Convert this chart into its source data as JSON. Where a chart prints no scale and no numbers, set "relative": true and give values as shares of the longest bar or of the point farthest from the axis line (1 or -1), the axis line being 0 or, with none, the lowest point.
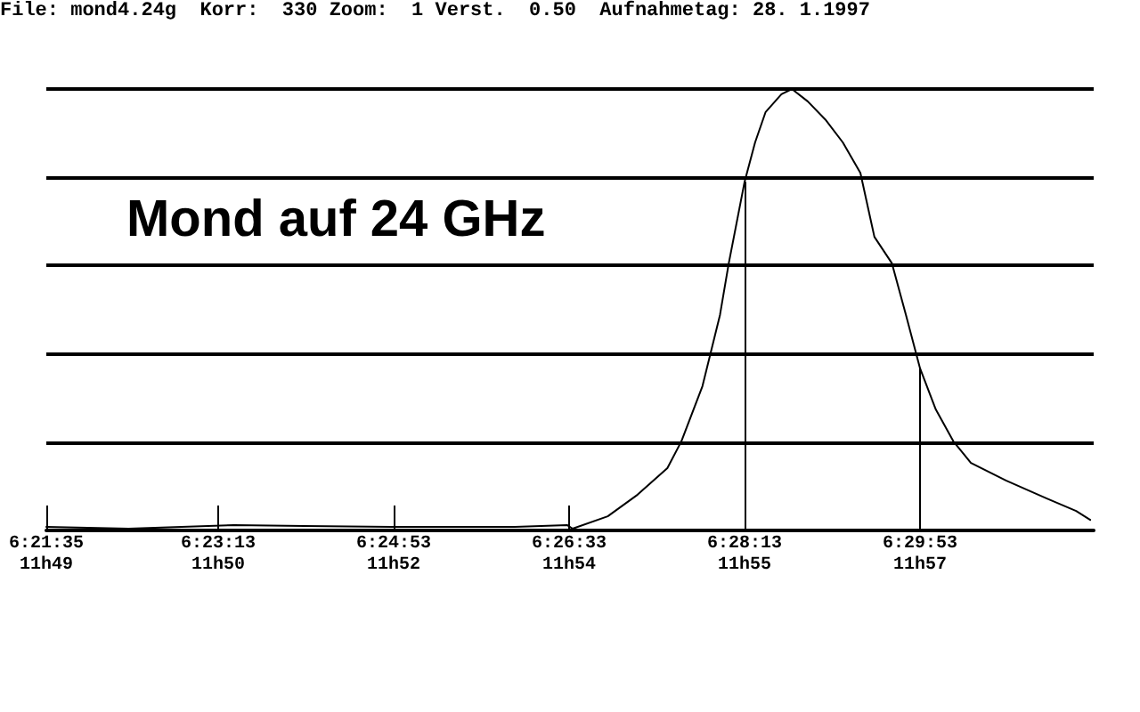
{
  "chart_data": {
    "type": "line",
    "title": "Mond auf 24 GHz",
    "annotations": [
      "File: mond4.24g  Korr:  330 Zoom:  1 Verst.  0.50  Aufnahmetag: 28. 1.1997",
      "11h49",
      "11h50",
      "11h52",
      "11h54",
      "11h55",
      "11h57"
    ],
    "relative": true,
    "x": [
      6.35972,
      6.37277,
      6.38111,
      6.38944,
      6.40055,
      6.41444,
      6.42555,
      6.43388,
      6.44222,
      6.44305,
      6.44861,
      6.45333,
      6.45805,
      6.46027,
      6.46361,
      6.46638,
      6.46777,
      6.47028,
      6.47194,
      6.47361,
      6.47611,
      6.47777,
      6.48027,
      6.48305,
      6.48583,
      6.48861,
      6.49083,
      6.49361,
      6.49583,
      6.49806,
      6.50055,
      6.50333,
      6.50611,
      6.51166,
      6.51805,
      6.52277,
      6.525
    ],
    "series": [
      {
        "color": "#000000",
        "values": [
          0.008,
          0.004,
          0.008,
          0.012,
          0.01,
          0.008,
          0.008,
          0.008,
          0.012,
          0.004,
          0.032,
          0.081,
          0.141,
          0.202,
          0.327,
          0.488,
          0.605,
          0.79,
          0.879,
          0.948,
          0.988,
          1.0,
          0.972,
          0.931,
          0.879,
          0.81,
          0.665,
          0.605,
          0.488,
          0.367,
          0.274,
          0.202,
          0.153,
          0.113,
          0.073,
          0.044,
          0.024
        ]
      }
    ],
    "xlim": [
      6.35972,
      6.52555
    ],
    "xticks": [
      {
        "value": 6.35972,
        "label": "6:21:35"
      },
      {
        "value": 6.38694,
        "label": "6:23:13"
      },
      {
        "value": 6.41472,
        "label": "6:24:53"
      },
      {
        "value": 6.4425,
        "label": "6:26:33"
      },
      {
        "value": 6.47028,
        "label": "6:28:13"
      },
      {
        "value": 6.49806,
        "label": "6:29:53"
      }
    ],
    "ref_lines": [
      {
        "axis": "x",
        "value": 6.47028
      },
      {
        "axis": "x",
        "value": 6.49806
      }
    ],
    "grid": "y",
    "marker": "none",
    "line_style": "solid"
  }
}
